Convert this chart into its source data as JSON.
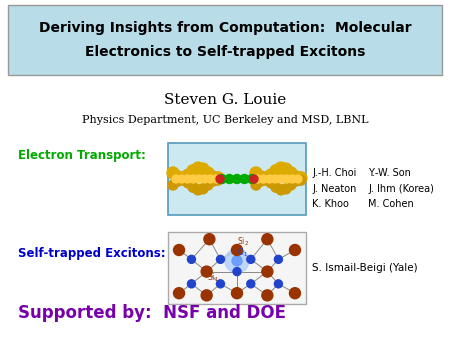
{
  "title_line1": "Deriving Insights from Computation:  Molecular",
  "title_line2": "Electronics to Self-trapped Excitons",
  "title_bg_color": "#b8dce8",
  "title_border_color": "#999999",
  "title_text_color": "#000000",
  "author": "Steven G. Louie",
  "affiliation": "Physics Department, UC Berkeley and MSD, LBNL",
  "section1_label": "Electron Transport:",
  "section1_color": "#00aa00",
  "section1_credits_col1": "J.-H. Choi\nJ. Neaton\nK. Khoo",
  "section1_credits_col2": "Y.-W. Son\nJ. Ihm (Korea)\nM. Cohen",
  "section2_label": "Self-trapped Excitons:",
  "section2_color": "#0000cc",
  "section2_credits": "S. Ismail-Beigi (Yale)",
  "support_text": "Supported by:  NSF and DOE",
  "support_color": "#7700aa",
  "bg_color": "#ffffff",
  "fig_width": 4.5,
  "fig_height": 3.38,
  "dpi": 100
}
